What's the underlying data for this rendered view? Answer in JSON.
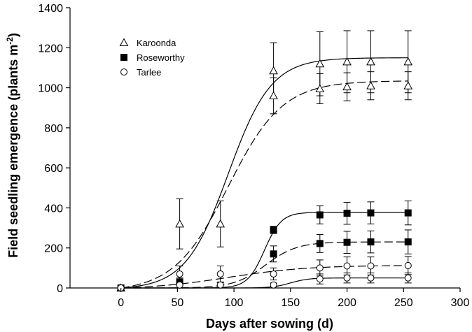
{
  "chart_data": {
    "type": "scatter",
    "title": "",
    "xlabel": "Days after sowing (d)",
    "ylabel_main": "Field seedling emergence (plants m",
    "ylabel_sup": "-2",
    "ylabel_close": ")",
    "xlim": [
      -45,
      300
    ],
    "ylim": [
      0,
      1400
    ],
    "x_ticks": [
      0,
      50,
      100,
      150,
      200,
      250,
      300
    ],
    "y_ticks": [
      0,
      200,
      400,
      600,
      800,
      1000,
      1200,
      1400
    ],
    "x_tick_labels": [
      "0",
      "50",
      "100",
      "150",
      "200",
      "250",
      "300"
    ],
    "y_tick_labels": [
      "0",
      "200",
      "400",
      "600",
      "800",
      "1000",
      "1200",
      "1400"
    ],
    "grid": false,
    "legend_position": "top-left",
    "series": [
      {
        "name": "Karoonda",
        "marker": "triangle-open",
        "points": [
          {
            "x": 0,
            "y": 0,
            "err": 0
          },
          {
            "x": 52,
            "y": 320,
            "err": 125
          },
          {
            "x": 88,
            "y": 320,
            "err": 115
          },
          {
            "x": 135,
            "y": 1085,
            "err": 140
          },
          {
            "x": 135,
            "y": 960,
            "err": 90
          },
          {
            "x": 176,
            "y": 1120,
            "err": 160
          },
          {
            "x": 176,
            "y": 995,
            "err": 75
          },
          {
            "x": 200,
            "y": 1130,
            "err": 155
          },
          {
            "x": 200,
            "y": 1005,
            "err": 70
          },
          {
            "x": 221,
            "y": 1130,
            "err": 155
          },
          {
            "x": 221,
            "y": 1010,
            "err": 70
          },
          {
            "x": 254,
            "y": 1130,
            "err": 155
          },
          {
            "x": 254,
            "y": 1010,
            "err": 70
          }
        ],
        "curves": [
          {
            "style": "solid",
            "a": 1150,
            "x0": 95,
            "b": 19
          },
          {
            "style": "dashed",
            "a": 1035,
            "x0": 95,
            "b": 24
          }
        ]
      },
      {
        "name": "Roseworthy",
        "marker": "square-filled",
        "points": [
          {
            "x": 0,
            "y": 0,
            "err": 0
          },
          {
            "x": 52,
            "y": 30,
            "err": 20
          },
          {
            "x": 135,
            "y": 290,
            "err": 18
          },
          {
            "x": 135,
            "y": 170,
            "err": 40
          },
          {
            "x": 176,
            "y": 365,
            "err": 45
          },
          {
            "x": 176,
            "y": 222,
            "err": 45
          },
          {
            "x": 200,
            "y": 373,
            "err": 55
          },
          {
            "x": 200,
            "y": 228,
            "err": 55
          },
          {
            "x": 221,
            "y": 375,
            "err": 55
          },
          {
            "x": 221,
            "y": 230,
            "err": 55
          },
          {
            "x": 254,
            "y": 375,
            "err": 60
          },
          {
            "x": 254,
            "y": 230,
            "err": 60
          }
        ],
        "curves": [
          {
            "style": "solid",
            "a": 378,
            "x0": 127,
            "b": 7.5
          },
          {
            "style": "dashed",
            "a": 230,
            "x0": 128,
            "b": 14
          }
        ]
      },
      {
        "name": "Tarlee",
        "marker": "circle-open",
        "points": [
          {
            "x": 0,
            "y": 0,
            "err": 0
          },
          {
            "x": 52,
            "y": 70,
            "err": 40
          },
          {
            "x": 52,
            "y": 15,
            "err": 15
          },
          {
            "x": 88,
            "y": 70,
            "err": 40
          },
          {
            "x": 88,
            "y": 15,
            "err": 12
          },
          {
            "x": 135,
            "y": 70,
            "err": 30
          },
          {
            "x": 135,
            "y": 15,
            "err": 10
          },
          {
            "x": 176,
            "y": 100,
            "err": 40
          },
          {
            "x": 176,
            "y": 45,
            "err": 25
          },
          {
            "x": 200,
            "y": 110,
            "err": 45
          },
          {
            "x": 200,
            "y": 50,
            "err": 25
          },
          {
            "x": 221,
            "y": 110,
            "err": 45
          },
          {
            "x": 221,
            "y": 50,
            "err": 25
          },
          {
            "x": 254,
            "y": 112,
            "err": 45
          },
          {
            "x": 254,
            "y": 50,
            "err": 25
          }
        ],
        "curves": [
          {
            "style": "solid",
            "a": 50,
            "x0": 150,
            "b": 8
          },
          {
            "style": "dashed",
            "a": 113,
            "x0": 95,
            "b": 35
          }
        ]
      }
    ]
  }
}
